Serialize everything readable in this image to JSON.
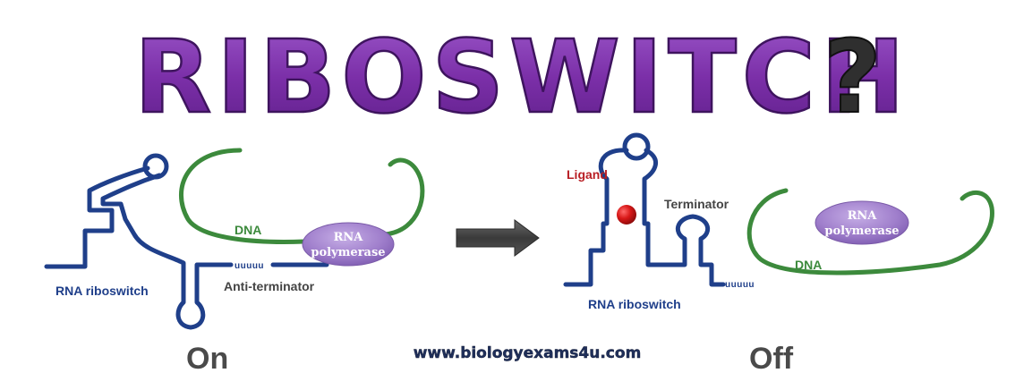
{
  "title": {
    "main": "RIBOSWITCH",
    "question_mark": "?"
  },
  "on_panel": {
    "dna_label": "DNA",
    "polymerase_label_line1": "RNA",
    "polymerase_label_line2": "polymerase",
    "uuuuu_label": "uuuuu",
    "antiterminator_label": "Anti-terminator",
    "riboswitch_label": "RNA riboswitch",
    "state_label": "On"
  },
  "off_panel": {
    "ligand_label": "Ligand",
    "terminator_label": "Terminator",
    "polymerase_label_line1": "RNA",
    "polymerase_label_line2": "polymerase",
    "dna_label": "DNA",
    "uuuuu_label": "uuuuu",
    "riboswitch_label": "RNA riboswitch",
    "state_label": "Off"
  },
  "website": "www.biologyexams4u.com",
  "colors": {
    "title_purple": "#7b2fa8",
    "title_outline": "#4a1a6e",
    "question_mark": "#2f2f2f",
    "rna_blue": "#1f3f8a",
    "dna_green": "#3c8a3c",
    "polymerase_purple": "#a484cf",
    "ligand_red": "#c8101a",
    "arrow_gray": "#4a4a4a",
    "label_dark": "#444444",
    "ligand_text": "#b81e24"
  }
}
